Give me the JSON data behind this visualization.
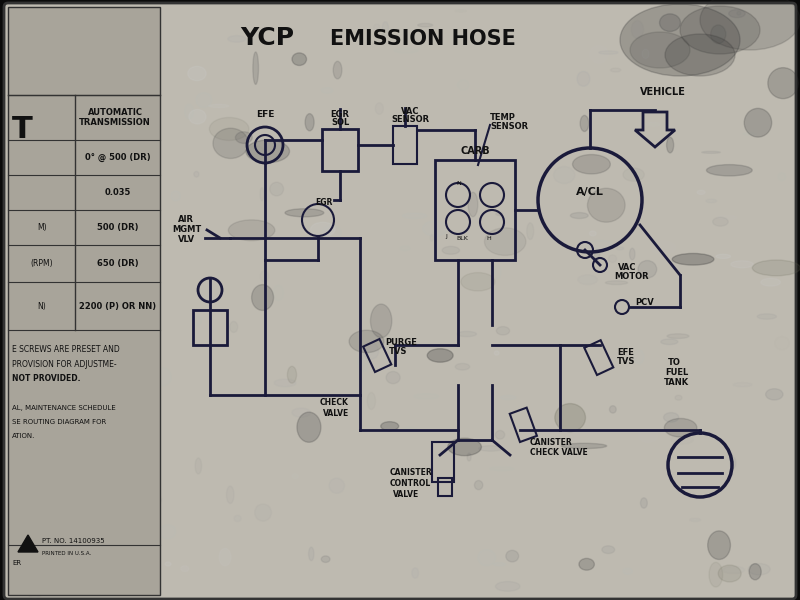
{
  "bg_color": "#0a0a0a",
  "sticker_bg": "#bebab0",
  "left_panel_bg": "#a8a49a",
  "diagram_color": "#1a1a3a",
  "title_ycp": "YCP",
  "title_emission": "EMISSION HOSE",
  "table_rows": [
    {
      "label": "",
      "value": "AUTOMATIC\nTRANSMISSION",
      "header": true
    },
    {
      "label": "",
      "value": "0° @ 500 (DR)",
      "header": false
    },
    {
      "label": "",
      "value": "0.035",
      "header": false
    },
    {
      "label": "M)",
      "value": "500 (DR)",
      "header": false
    },
    {
      "label": "(RPM)",
      "value": "650 (DR)",
      "header": false
    },
    {
      "label": "N)",
      "value": "2200 (P) OR NN)",
      "header": false
    }
  ],
  "bottom_texts": [
    "E SCREWS ARE PRESET AND",
    "PROVISION FOR ADJUSTME-",
    "NOT PROVIDED.",
    "",
    "AL, MAINTENANCE SCHEDULE",
    "SE ROUTING DIAGRAM FOR",
    "ATION."
  ],
  "part_no": "PT. NO. 14100935",
  "printed": "PRINTED IN U.S.A."
}
